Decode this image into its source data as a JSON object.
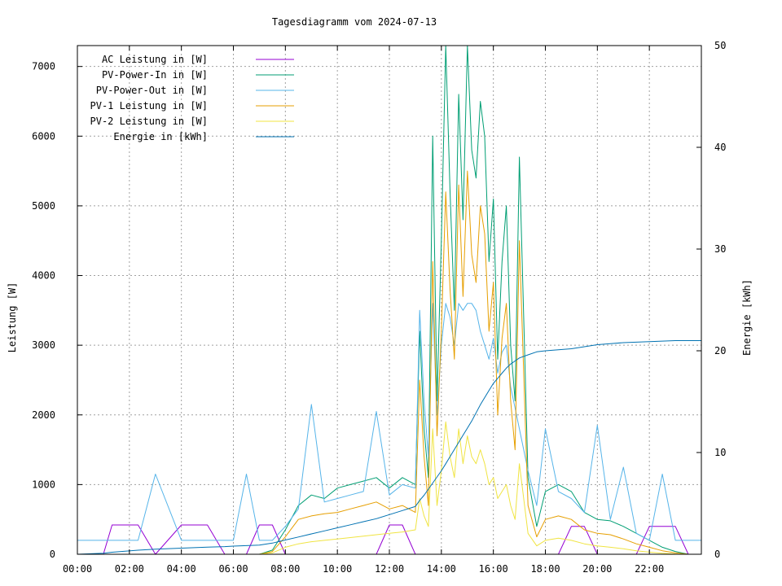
{
  "chart_data": {
    "type": "line",
    "title": "Tagesdiagramm vom 2024-07-13",
    "xlabel": "",
    "ylabel": "Leistung [W]",
    "y2label": "Energie [kWh]",
    "xlim": [
      "00:00",
      "24:00"
    ],
    "ylim": [
      0,
      7300
    ],
    "y2lim": [
      0,
      50
    ],
    "grid": true,
    "legend_position": "top-left",
    "x_ticks": [
      "00:00",
      "02:00",
      "04:00",
      "06:00",
      "08:00",
      "10:00",
      "12:00",
      "14:00",
      "16:00",
      "18:00",
      "20:00",
      "22:00"
    ],
    "y_ticks": [
      "0",
      "1000",
      "2000",
      "3000",
      "4000",
      "5000",
      "6000",
      "7000"
    ],
    "y2_ticks": [
      "0",
      "10",
      "20",
      "30",
      "40",
      "50"
    ],
    "x": [
      "00:00",
      "01:00",
      "01:20",
      "02:20",
      "03:00",
      "04:00",
      "05:00",
      "05:40",
      "06:00",
      "06:30",
      "07:00",
      "07:30",
      "08:00",
      "08:30",
      "09:00",
      "09:30",
      "10:00",
      "10:30",
      "11:00",
      "11:30",
      "12:00",
      "12:30",
      "13:00",
      "13:10",
      "13:20",
      "13:30",
      "13:40",
      "13:50",
      "14:00",
      "14:10",
      "14:20",
      "14:30",
      "14:40",
      "14:50",
      "15:00",
      "15:10",
      "15:20",
      "15:30",
      "15:40",
      "15:50",
      "16:00",
      "16:10",
      "16:20",
      "16:30",
      "16:40",
      "16:50",
      "17:00",
      "17:20",
      "17:40",
      "18:00",
      "18:30",
      "19:00",
      "19:30",
      "20:00",
      "20:30",
      "21:00",
      "21:30",
      "22:00",
      "22:30",
      "23:00",
      "23:30",
      "24:00"
    ],
    "series": [
      {
        "name": "AC Leistung in [W]",
        "axis": "left",
        "color": "#9400d3",
        "values": [
          0,
          0,
          420,
          420,
          0,
          420,
          420,
          0,
          0,
          0,
          420,
          420,
          0,
          0,
          0,
          0,
          0,
          0,
          0,
          0,
          420,
          420,
          0,
          0,
          0,
          0,
          0,
          0,
          0,
          0,
          0,
          0,
          0,
          0,
          0,
          0,
          0,
          0,
          0,
          0,
          0,
          0,
          0,
          0,
          0,
          0,
          0,
          0,
          0,
          0,
          0,
          400,
          400,
          0,
          0,
          0,
          0,
          400,
          400,
          400,
          0,
          0
        ]
      },
      {
        "name": "PV-Power-In in [W]",
        "axis": "left",
        "color": "#009e73",
        "values": [
          0,
          0,
          0,
          0,
          0,
          0,
          0,
          0,
          0,
          0,
          0,
          60,
          350,
          700,
          850,
          800,
          950,
          1000,
          1050,
          1100,
          950,
          1100,
          1000,
          3200,
          1800,
          1100,
          6000,
          2200,
          4500,
          7300,
          5200,
          3500,
          6600,
          4800,
          7300,
          5800,
          5400,
          6500,
          6000,
          4200,
          5100,
          2800,
          4200,
          5000,
          3000,
          2200,
          5700,
          1100,
          400,
          900,
          1000,
          900,
          600,
          500,
          480,
          400,
          300,
          200,
          100,
          40,
          0,
          0
        ]
      },
      {
        "name": "PV-Power-Out in [W]",
        "axis": "left",
        "color": "#56b4e9",
        "values": [
          200,
          200,
          200,
          200,
          1150,
          200,
          200,
          200,
          200,
          1150,
          200,
          200,
          400,
          650,
          2150,
          750,
          800,
          850,
          900,
          2050,
          850,
          1000,
          950,
          3500,
          2200,
          1400,
          3600,
          2000,
          3000,
          3600,
          3400,
          3000,
          3600,
          3500,
          3600,
          3600,
          3500,
          3200,
          3000,
          2800,
          3100,
          2600,
          2900,
          3000,
          2400,
          2100,
          1800,
          1200,
          700,
          1800,
          900,
          800,
          600,
          1850,
          500,
          1250,
          300,
          200,
          1150,
          200,
          200,
          200
        ]
      },
      {
        "name": "PV-1 Leistung in [W]",
        "axis": "left",
        "color": "#e69f00",
        "values": [
          0,
          0,
          0,
          0,
          0,
          0,
          0,
          0,
          0,
          0,
          0,
          40,
          250,
          500,
          550,
          580,
          600,
          650,
          700,
          750,
          650,
          700,
          600,
          2500,
          1400,
          700,
          4200,
          1700,
          3200,
          5200,
          3800,
          2800,
          5300,
          3700,
          5500,
          4300,
          3900,
          5000,
          4600,
          3200,
          3900,
          2000,
          3100,
          3600,
          2200,
          1500,
          4500,
          700,
          250,
          500,
          550,
          500,
          350,
          300,
          280,
          220,
          150,
          100,
          50,
          20,
          0,
          0
        ]
      },
      {
        "name": "PV-2 Leistung in [W]",
        "axis": "left",
        "color": "#f0e442",
        "values": [
          0,
          0,
          0,
          0,
          0,
          0,
          0,
          0,
          0,
          0,
          0,
          20,
          100,
          150,
          180,
          200,
          220,
          240,
          260,
          280,
          300,
          320,
          350,
          800,
          550,
          400,
          1800,
          700,
          1200,
          1900,
          1400,
          1100,
          1800,
          1300,
          1700,
          1400,
          1300,
          1500,
          1300,
          1000,
          1100,
          800,
          900,
          1000,
          700,
          500,
          1300,
          300,
          120,
          200,
          230,
          200,
          150,
          120,
          100,
          80,
          50,
          30,
          15,
          5,
          0,
          0
        ]
      },
      {
        "name": "Energie in [kWh]",
        "axis": "right",
        "color": "#0072b2",
        "values": [
          0,
          0.1,
          0.2,
          0.4,
          0.5,
          0.6,
          0.7,
          0.75,
          0.8,
          0.85,
          0.9,
          1.1,
          1.4,
          1.7,
          2.0,
          2.3,
          2.6,
          2.9,
          3.2,
          3.5,
          3.9,
          4.3,
          4.7,
          5.3,
          5.8,
          6.4,
          7.0,
          7.6,
          8.2,
          8.9,
          9.6,
          10.3,
          11.0,
          11.7,
          12.4,
          13.1,
          13.9,
          14.7,
          15.4,
          16.1,
          16.8,
          17.3,
          17.8,
          18.3,
          18.7,
          19.0,
          19.3,
          19.6,
          19.9,
          20.0,
          20.1,
          20.2,
          20.4,
          20.6,
          20.7,
          20.8,
          20.85,
          20.9,
          20.95,
          21.0,
          21.0,
          21.0
        ]
      }
    ]
  }
}
